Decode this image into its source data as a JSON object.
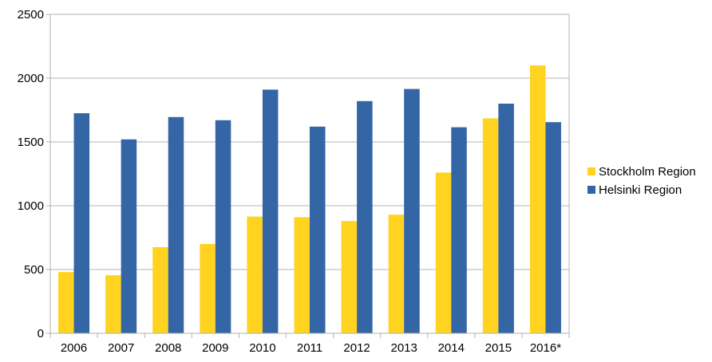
{
  "chart_data": {
    "type": "bar",
    "categories": [
      "2006",
      "2007",
      "2008",
      "2009",
      "2010",
      "2011",
      "2012",
      "2013",
      "2014",
      "2015",
      "2016*"
    ],
    "series": [
      {
        "name": "Stockholm Region",
        "color": "#ffd320",
        "values": [
          480,
          455,
          675,
          700,
          915,
          910,
          880,
          930,
          1260,
          1685,
          2100
        ]
      },
      {
        "name": "Helsinki Region",
        "color": "#3465a4",
        "values": [
          1725,
          1520,
          1695,
          1670,
          1910,
          1620,
          1820,
          1915,
          1615,
          1800,
          1655
        ]
      }
    ],
    "title": "",
    "xlabel": "",
    "ylabel": "",
    "ylim": [
      0,
      2500
    ],
    "yticks": [
      0,
      500,
      1000,
      1500,
      2000,
      2500
    ],
    "grid": true,
    "legend_position": "right"
  }
}
